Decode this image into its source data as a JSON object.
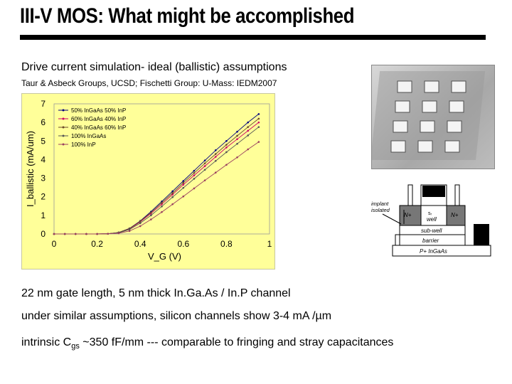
{
  "title": "III-V MOS:  What might  be accomplished",
  "subtitle": "Drive current simulation- ideal (ballistic) assumptions",
  "citation": "Taur &  Asbeck Groups, UCSD; Fischetti Group: U-Mass: IEDM2007",
  "bullets": {
    "b1": "22 nm gate length, 5 nm thick In.Ga.As / In.P channel",
    "b2": "under similar assumptions, silicon channels show 3-4 mA /µm",
    "b3_pre": "intrinsic C",
    "b3_sub": "gs",
    "b3_post": " ~350 fF/mm --- comparable to fringing and stray capacitances"
  },
  "device": {
    "implant_label": "implant\nisolated",
    "n_plus_left": "N+",
    "n_plus_right": "N+",
    "well_label": "well",
    "well_sub": "sᵣ",
    "subwell_label": "sub-well",
    "barrier_label": "barrier",
    "substrate_label": "P+ InGaAs"
  },
  "chart_data": {
    "type": "line",
    "xlabel": "V_G (V)",
    "ylabel": "I_ballistic (mA/um)",
    "xlim": [
      0,
      1
    ],
    "ylim": [
      0,
      7
    ],
    "x_ticks": [
      "0",
      "0.2",
      "0.4",
      "0.6",
      "0.8",
      "1"
    ],
    "y_ticks": [
      "0",
      "1",
      "2",
      "3",
      "4",
      "5",
      "6",
      "7"
    ],
    "x": [
      0,
      0.05,
      0.1,
      0.15,
      0.2,
      0.25,
      0.3,
      0.35,
      0.4,
      0.45,
      0.5,
      0.55,
      0.6,
      0.65,
      0.7,
      0.75,
      0.8,
      0.85,
      0.9,
      0.95
    ],
    "series": [
      {
        "name": "50% InGaAs 50% InP",
        "color": "#000080",
        "values": [
          0,
          0,
          0,
          0,
          0,
          0.01,
          0.08,
          0.3,
          0.7,
          1.2,
          1.75,
          2.3,
          2.85,
          3.4,
          3.95,
          4.5,
          5.0,
          5.5,
          6.0,
          6.45
        ]
      },
      {
        "name": "60% InGaAs 40% InP",
        "color": "#cc0066",
        "values": [
          0,
          0,
          0,
          0,
          0,
          0.01,
          0.07,
          0.27,
          0.65,
          1.1,
          1.6,
          2.12,
          2.65,
          3.15,
          3.65,
          4.15,
          4.65,
          5.1,
          5.55,
          6.0
        ]
      },
      {
        "name": "40% InGaAs 60% InP",
        "color": "#6b4a2a",
        "values": [
          0,
          0,
          0,
          0,
          0,
          0.01,
          0.08,
          0.29,
          0.68,
          1.15,
          1.68,
          2.2,
          2.75,
          3.28,
          3.8,
          4.3,
          4.8,
          5.28,
          5.75,
          6.2
        ]
      },
      {
        "name": "100% InGaAs",
        "color": "#555555",
        "values": [
          0,
          0,
          0,
          0,
          0,
          0.01,
          0.06,
          0.24,
          0.58,
          1.0,
          1.48,
          1.98,
          2.48,
          2.97,
          3.45,
          3.93,
          4.4,
          4.85,
          5.3,
          5.75
        ]
      },
      {
        "name": "100% InP",
        "color": "#9b4060",
        "values": [
          0,
          0,
          0,
          0,
          0,
          0.01,
          0.04,
          0.16,
          0.42,
          0.78,
          1.18,
          1.6,
          2.02,
          2.45,
          2.88,
          3.3,
          3.72,
          4.12,
          4.55,
          4.95
        ]
      }
    ],
    "grid": false,
    "legend": "top-left"
  }
}
